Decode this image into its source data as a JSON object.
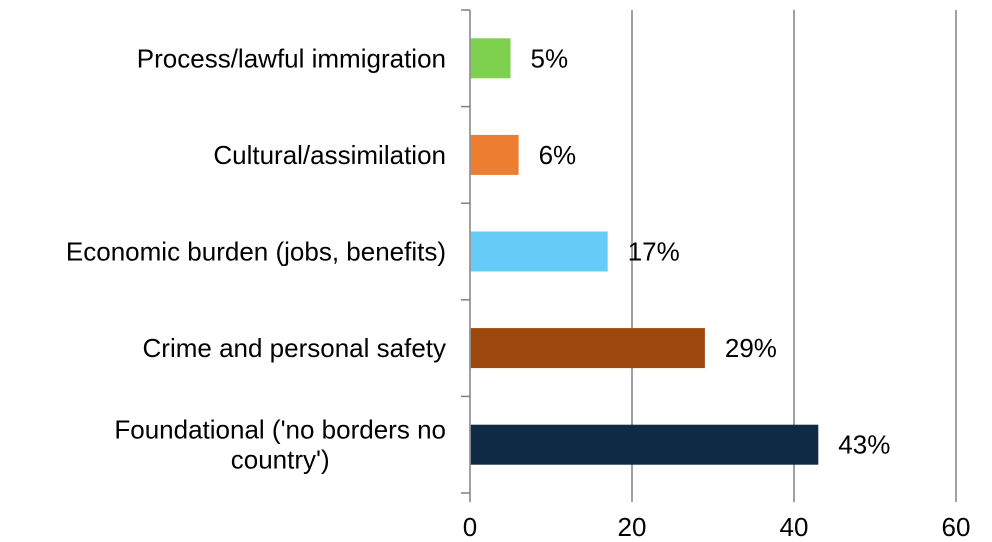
{
  "chart_data": {
    "type": "bar",
    "orientation": "horizontal",
    "categories": [
      "Process/lawful immigration",
      "Cultural/assimilation",
      "Economic burden (jobs, benefits)",
      "Crime and personal safety",
      "Foundational ('no borders no country')"
    ],
    "values": [
      5,
      6,
      17,
      29,
      43
    ],
    "data_labels": [
      "5%",
      "6%",
      "17%",
      "29%",
      "43%"
    ],
    "colors": [
      "#7ed04f",
      "#ed7d31",
      "#66ccf7",
      "#9e480e",
      "#0f2a45"
    ],
    "xlim": [
      0,
      60
    ],
    "x_ticks": [
      0,
      20,
      40,
      60
    ],
    "x_tick_labels": [
      "0",
      "20",
      "40",
      "60"
    ],
    "grid": "vertical",
    "legend": "none"
  }
}
